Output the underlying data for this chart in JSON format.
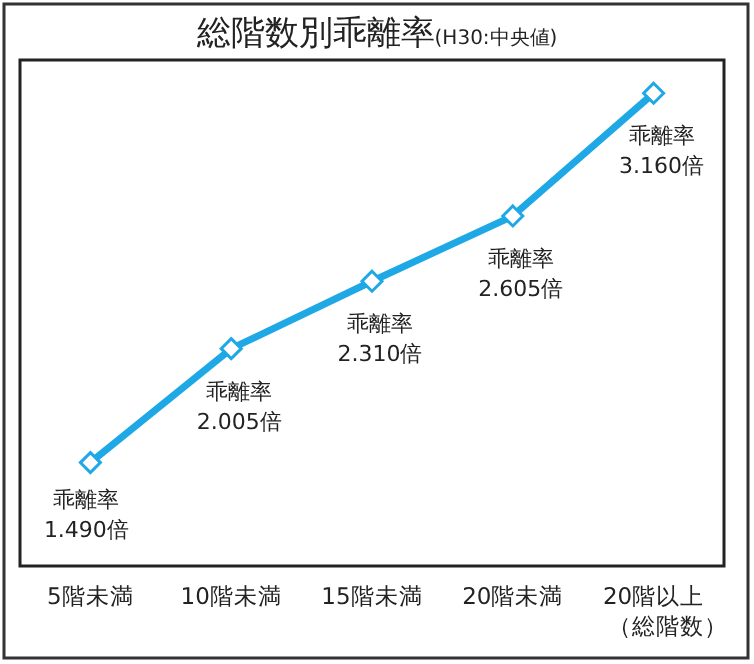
{
  "chart_data": {
    "type": "line",
    "title": "総階数別乖離率",
    "subtitle": "(H30:中央値)",
    "categories": [
      "5階未満",
      "10階未満",
      "15階未満",
      "20階未満",
      "20階以上"
    ],
    "xlabel": "（総階数）",
    "series": [
      {
        "color": "#1fa8e6",
        "values": [
          1.49,
          2.005,
          2.31,
          2.605,
          3.16
        ],
        "value_labels": [
          "乖離率\n1.490倍",
          "乖離率\n2.005倍",
          "乖離率\n2.310倍",
          "乖離率\n2.605倍",
          "乖離率\n3.160倍"
        ]
      }
    ],
    "marker": "diamond",
    "line_style": "solid"
  }
}
